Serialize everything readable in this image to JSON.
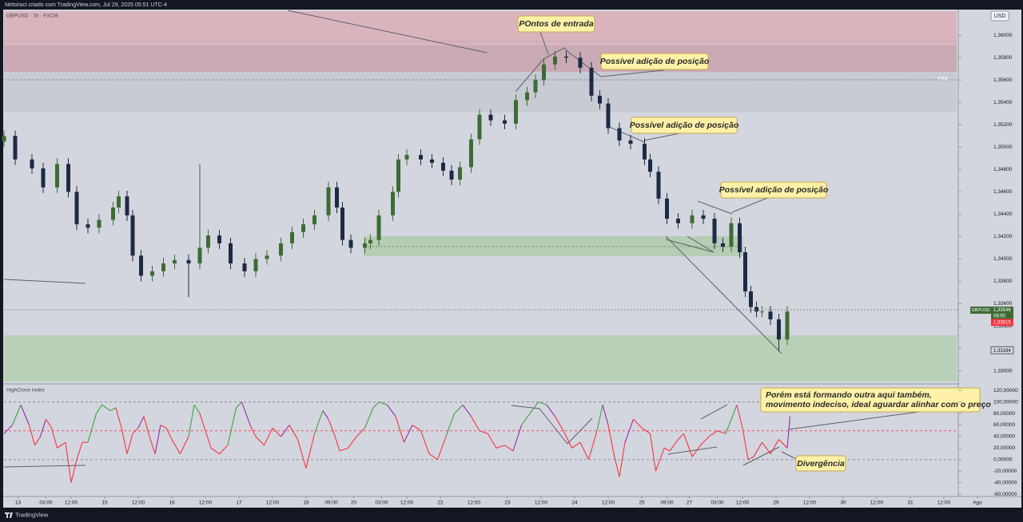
{
  "header": {
    "title": "Netoiraci criado com TradingView.com, Jul 29, 2025 05:51 UTC-4",
    "brand": "TradingView"
  },
  "chart_data": [
    {
      "type": "candlestick",
      "title": "GBPUSD · 1h · FXCM",
      "currency": "USD",
      "zone_label": "FVG",
      "x": [
        0,
        4,
        10,
        14,
        19,
        23,
        26,
        30,
        34,
        39,
        41,
        44,
        46,
        49,
        53,
        57,
        61,
        66,
        70,
        73,
        77,
        81,
        86,
        90,
        94,
        99,
        103,
        107,
        111,
        116,
        119,
        121,
        124,
        129,
        131,
        134,
        139,
        141,
        144,
        149,
        153,
        157,
        160,
        163,
        167,
        170,
        174,
        179,
        183,
        187,
        190,
        193,
        197,
        201,
        206,
        210,
        213,
        216,
        220,
        224,
        229,
        231,
        234,
        237,
        241,
        246,
        250,
        254,
        257,
        260,
        263,
        265,
        267,
        269,
        271,
        274,
        277,
        280
      ],
      "open": [
        1.3505,
        1.351,
        1.3489,
        1.3481,
        1.3464,
        1.3485,
        1.346,
        1.3431,
        1.3428,
        1.3435,
        1.3446,
        1.3456,
        1.3439,
        1.3403,
        1.3385,
        1.3389,
        1.3396,
        1.3399,
        1.3396,
        1.341,
        1.3421,
        1.3414,
        1.3396,
        1.3389,
        1.34,
        1.3403,
        1.3414,
        1.3424,
        1.3431,
        1.3439,
        1.3464,
        1.3446,
        1.3417,
        1.341,
        1.3414,
        1.3417,
        1.3439,
        1.346,
        1.3489,
        1.3493,
        1.3489,
        1.3486,
        1.3479,
        1.3471,
        1.3482,
        1.3507,
        1.3529,
        1.3524,
        1.3521,
        1.3542,
        1.3549,
        1.356,
        1.3574,
        1.3581,
        1.358,
        1.3571,
        1.3546,
        1.3539,
        1.3517,
        1.3506,
        1.3503,
        1.3489,
        1.3478,
        1.3454,
        1.3436,
        1.3432,
        1.3439,
        1.3436,
        1.3414,
        1.3411,
        1.3432,
        1.3406,
        1.3371,
        1.3357,
        1.3353,
        1.3353,
        1.3346,
        1.3328
      ],
      "high": [
        1.3515,
        1.3515,
        1.3494,
        1.3486,
        1.349,
        1.349,
        1.3465,
        1.3436,
        1.344,
        1.3451,
        1.3461,
        1.3461,
        1.3444,
        1.3408,
        1.3394,
        1.3401,
        1.3404,
        1.3404,
        1.3485,
        1.3426,
        1.3426,
        1.3419,
        1.3401,
        1.3405,
        1.3408,
        1.3419,
        1.3429,
        1.3436,
        1.3444,
        1.3469,
        1.3469,
        1.3451,
        1.3422,
        1.3419,
        1.3422,
        1.3444,
        1.3465,
        1.3494,
        1.3498,
        1.3498,
        1.3494,
        1.3491,
        1.3484,
        1.3487,
        1.3512,
        1.3534,
        1.3534,
        1.3529,
        1.3547,
        1.3554,
        1.3565,
        1.3579,
        1.3586,
        1.3586,
        1.3585,
        1.3576,
        1.3551,
        1.3544,
        1.3522,
        1.3511,
        1.3508,
        1.3494,
        1.3483,
        1.3459,
        1.3441,
        1.3444,
        1.3444,
        1.3441,
        1.3419,
        1.3437,
        1.3437,
        1.3411,
        1.3376,
        1.3362,
        1.3358,
        1.3358,
        1.3351,
        1.3358
      ],
      "low": [
        1.35,
        1.3484,
        1.3476,
        1.3459,
        1.3459,
        1.3455,
        1.3426,
        1.3423,
        1.3423,
        1.343,
        1.3441,
        1.3434,
        1.3398,
        1.338,
        1.338,
        1.3384,
        1.3391,
        1.3366,
        1.3391,
        1.3405,
        1.3409,
        1.3391,
        1.3384,
        1.3384,
        1.3395,
        1.3398,
        1.3409,
        1.3419,
        1.3426,
        1.3434,
        1.3441,
        1.3412,
        1.3405,
        1.3405,
        1.3409,
        1.3412,
        1.3434,
        1.3455,
        1.3484,
        1.3484,
        1.3481,
        1.3474,
        1.3466,
        1.3466,
        1.3477,
        1.3502,
        1.3519,
        1.3516,
        1.3516,
        1.3537,
        1.3544,
        1.3555,
        1.3569,
        1.3575,
        1.3566,
        1.3541,
        1.3534,
        1.3512,
        1.3501,
        1.3498,
        1.3484,
        1.3473,
        1.3449,
        1.3431,
        1.3427,
        1.3427,
        1.3431,
        1.3409,
        1.3406,
        1.3406,
        1.3401,
        1.3366,
        1.3352,
        1.3348,
        1.3348,
        1.3341,
        1.3318,
        1.3323
      ],
      "close": [
        1.351,
        1.3489,
        1.3481,
        1.3464,
        1.3485,
        1.346,
        1.3431,
        1.3428,
        1.3435,
        1.3446,
        1.3456,
        1.3439,
        1.3403,
        1.3385,
        1.3389,
        1.3396,
        1.3399,
        1.3396,
        1.341,
        1.3421,
        1.3414,
        1.3396,
        1.3389,
        1.34,
        1.3403,
        1.3414,
        1.3424,
        1.3431,
        1.3439,
        1.3464,
        1.3446,
        1.3417,
        1.341,
        1.3414,
        1.3417,
        1.3439,
        1.346,
        1.3489,
        1.3493,
        1.3489,
        1.3486,
        1.3479,
        1.3471,
        1.3482,
        1.3507,
        1.3529,
        1.3524,
        1.3521,
        1.3542,
        1.3549,
        1.356,
        1.3574,
        1.3581,
        1.358,
        1.3571,
        1.3546,
        1.3539,
        1.3517,
        1.3506,
        1.3503,
        1.3489,
        1.3478,
        1.3454,
        1.3436,
        1.3432,
        1.3439,
        1.3436,
        1.3414,
        1.3411,
        1.3432,
        1.3406,
        1.3371,
        1.3357,
        1.3353,
        1.3353,
        1.3346,
        1.3328,
        1.3353
      ],
      "up_color": "#3e6b35",
      "down_color": "#1e2a44",
      "xlim": [
        0,
        350
      ],
      "ylim": [
        1.3289,
        1.3623
      ],
      "yticks": [
        {
          "value": 1.36,
          "label": "1,36000"
        },
        {
          "value": 1.358,
          "label": "1,35800"
        },
        {
          "value": 1.356,
          "label": "1,35600"
        },
        {
          "value": 1.354,
          "label": "1,35400"
        },
        {
          "value": 1.352,
          "label": "1,35200"
        },
        {
          "value": 1.35,
          "label": "1,35000"
        },
        {
          "value": 1.348,
          "label": "1,34800"
        },
        {
          "value": 1.346,
          "label": "1,34600"
        },
        {
          "value": 1.344,
          "label": "1,34400"
        },
        {
          "value": 1.342,
          "label": "1,34200"
        },
        {
          "value": 1.34,
          "label": "1,34000"
        },
        {
          "value": 1.338,
          "label": "1,33800"
        },
        {
          "value": 1.336,
          "label": "1,33600"
        },
        {
          "value": 1.334,
          "label": "1,33400"
        },
        {
          "value": 1.332,
          "label": "1,33200"
        },
        {
          "value": 1.33,
          "label": "1,33000"
        }
      ],
      "last_price": {
        "value": 1.33546,
        "label": "1,33546",
        "symbol": "GBPUSD",
        "countdown": "08:50"
      },
      "bid_price": {
        "value": 1.33515,
        "label": "1,33515"
      },
      "low_marker": {
        "value": 1.33184,
        "label": "1,33184"
      },
      "annotations": [
        "POntos de entrada",
        "Possível adição de posição",
        "Possível adição de posição",
        "Possível adição de posição"
      ]
    },
    {
      "type": "line",
      "title": "HighClose Index",
      "x": [
        0,
        3,
        6,
        9,
        11,
        13,
        15,
        17,
        19,
        22,
        24,
        26,
        28,
        30,
        33,
        35,
        38,
        40,
        42,
        44,
        46,
        48,
        50,
        52,
        54,
        56,
        58,
        60,
        63,
        66,
        68,
        70,
        72,
        74,
        77,
        80,
        83,
        85,
        88,
        90,
        93,
        96,
        99,
        102,
        105,
        108,
        111,
        114,
        116,
        118,
        120,
        123,
        126,
        129,
        132,
        134,
        137,
        140,
        143,
        146,
        149,
        152,
        155,
        158,
        161,
        164,
        167,
        170,
        173,
        176,
        179,
        182,
        185,
        188,
        191,
        194,
        197,
        200,
        203,
        206,
        209,
        212,
        214,
        216,
        218,
        220,
        222,
        225,
        228,
        231,
        233,
        236,
        238,
        241,
        243,
        246,
        249,
        252,
        255,
        258,
        262,
        264,
        266,
        268,
        271,
        274,
        277,
        280,
        281
      ],
      "values": [
        45,
        60,
        95,
        60,
        25,
        40,
        70,
        55,
        20,
        30,
        -40,
        0,
        30,
        30,
        80,
        95,
        85,
        90,
        55,
        10,
        45,
        55,
        75,
        40,
        10,
        60,
        55,
        35,
        10,
        40,
        95,
        80,
        50,
        20,
        10,
        25,
        90,
        100,
        60,
        40,
        25,
        55,
        40,
        60,
        35,
        -15,
        45,
        85,
        70,
        45,
        15,
        20,
        40,
        55,
        90,
        100,
        95,
        75,
        30,
        60,
        50,
        10,
        0,
        40,
        80,
        95,
        75,
        50,
        45,
        20,
        25,
        15,
        60,
        80,
        100,
        95,
        75,
        50,
        20,
        30,
        0,
        50,
        95,
        60,
        10,
        -30,
        30,
        70,
        55,
        45,
        -20,
        20,
        15,
        35,
        45,
        5,
        25,
        40,
        50,
        45,
        95,
        55,
        0,
        5,
        30,
        10,
        35,
        20,
        75
      ],
      "color": "#f23645",
      "mid_color": "#9c27b0",
      "high_color": "#43a047",
      "color_thresholds": [
        60,
        80
      ],
      "levels": [
        {
          "value": 100,
          "color": "#787b86"
        },
        {
          "value": 50,
          "color": "#f23645"
        },
        {
          "value": 0,
          "color": "#787b86"
        }
      ],
      "xlim": [
        0,
        350
      ],
      "ylim": [
        -64,
        130
      ],
      "yticks": [
        {
          "value": 120,
          "label": "120,00000"
        },
        {
          "value": 100,
          "label": "100,00000"
        },
        {
          "value": 80,
          "label": "80,00000"
        },
        {
          "value": 60,
          "label": "60,00000"
        },
        {
          "value": 40,
          "label": "40,00000"
        },
        {
          "value": 20,
          "label": "20,00000"
        },
        {
          "value": 0,
          "label": "0,00000"
        },
        {
          "value": -20,
          "label": "-20,00000"
        },
        {
          "value": -40,
          "label": "-40,00000"
        },
        {
          "value": -60,
          "label": "-60,00000"
        }
      ],
      "xticks": [
        {
          "value": 5,
          "label": "13"
        },
        {
          "value": 15,
          "label": "03:00"
        },
        {
          "value": 24,
          "label": "12:00"
        },
        {
          "value": 36,
          "label": "15"
        },
        {
          "value": 48,
          "label": "12:00"
        },
        {
          "value": 60,
          "label": "16"
        },
        {
          "value": 72,
          "label": "12:00"
        },
        {
          "value": 84,
          "label": "17"
        },
        {
          "value": 96,
          "label": "12:00"
        },
        {
          "value": 108,
          "label": "18"
        },
        {
          "value": 117,
          "label": "09:00"
        },
        {
          "value": 125,
          "label": "20"
        },
        {
          "value": 135,
          "label": "03:00"
        },
        {
          "value": 144,
          "label": "12:00"
        },
        {
          "value": 156,
          "label": "22"
        },
        {
          "value": 168,
          "label": "12:00"
        },
        {
          "value": 180,
          "label": "23"
        },
        {
          "value": 192,
          "label": "12:00"
        },
        {
          "value": 204,
          "label": "24"
        },
        {
          "value": 216,
          "label": "12:00"
        },
        {
          "value": 228,
          "label": "25"
        },
        {
          "value": 237,
          "label": "09:00"
        },
        {
          "value": 245,
          "label": "27"
        },
        {
          "value": 255,
          "label": "03:00"
        },
        {
          "value": 264,
          "label": "12:00"
        },
        {
          "value": 276,
          "label": "29"
        },
        {
          "value": 288,
          "label": "12:00"
        },
        {
          "value": 300,
          "label": "30"
        },
        {
          "value": 312,
          "label": "12:00"
        },
        {
          "value": 324,
          "label": "31"
        },
        {
          "value": 336,
          "label": "12:00"
        },
        {
          "value": 348,
          "label": "Ago"
        }
      ],
      "note": [
        "Porém está formando outra aqui também,",
        "movimento indeciso, ideal aguardar alinhar com o preço"
      ],
      "annotation": "Divergência"
    }
  ]
}
